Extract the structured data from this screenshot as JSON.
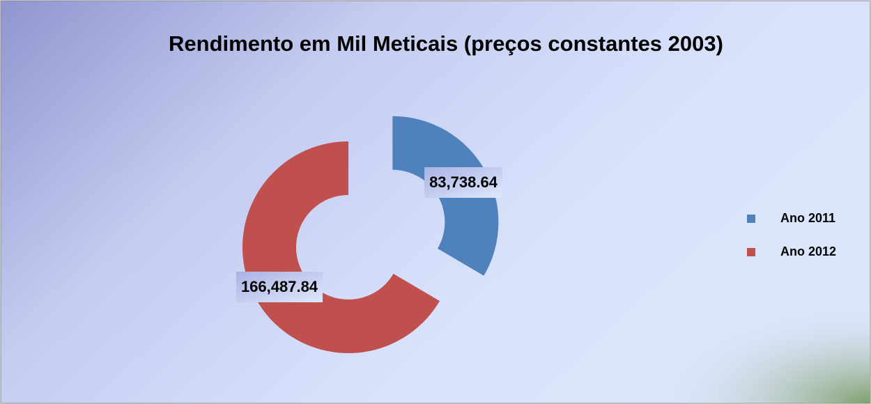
{
  "chart_data": {
    "type": "donut",
    "title": "Rendimento em Mil Meticais  (preços constantes 2003)",
    "categories": [
      "Ano 2011",
      "Ano 2012"
    ],
    "values": [
      83738.64,
      166487.84
    ],
    "value_labels": [
      "83,738.64",
      "166,487.84"
    ],
    "colors": [
      "#4f81bd",
      "#c0504d"
    ],
    "legend": "right"
  }
}
